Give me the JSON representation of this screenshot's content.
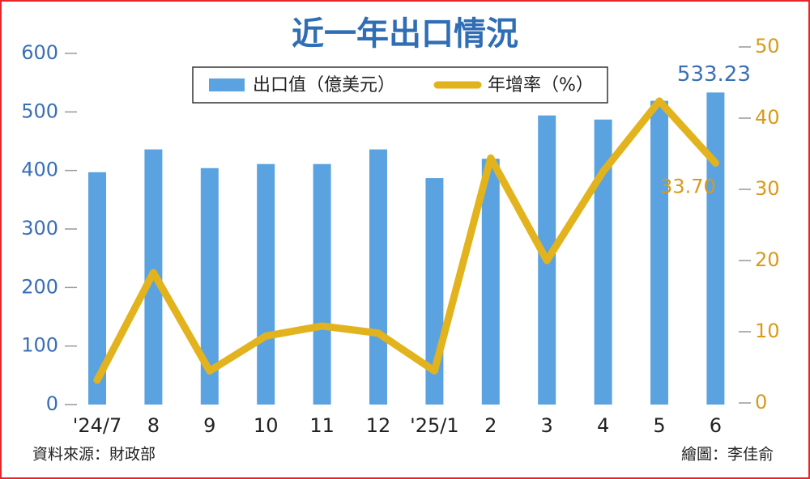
{
  "chart_data": {
    "type": "bar",
    "title": "近一年出口情況",
    "categories": [
      "'24/7",
      "8",
      "9",
      "10",
      "11",
      "12",
      "'25/1",
      "2",
      "3",
      "4",
      "5",
      "6"
    ],
    "series": [
      {
        "name": "出口值（億美元）",
        "type": "bar",
        "color": "#5ba3e0",
        "axis": "y",
        "values": [
          397,
          436,
          404,
          411,
          411,
          436,
          387,
          420,
          494,
          487,
          519,
          533.23
        ]
      },
      {
        "name": "年增率（%）",
        "type": "line",
        "color": "#e2b31d",
        "axis": "y2",
        "values": [
          3.2,
          18.3,
          4.5,
          9.4,
          10.8,
          9.8,
          4.5,
          34.4,
          20.0,
          32.5,
          42.4,
          33.7
        ],
        "value_labels": [
          null,
          null,
          null,
          null,
          null,
          null,
          null,
          null,
          null,
          null,
          null,
          "33.70"
        ]
      }
    ],
    "ylim": [
      0,
      600
    ],
    "yticks": [
      0,
      100,
      200,
      300,
      400,
      500,
      600
    ],
    "y2lim": [
      0,
      50
    ],
    "y2ticks": [
      0,
      10,
      20,
      30,
      40,
      50
    ],
    "source": "資料來源：財政部",
    "credit": "繪圖：李佳俞"
  }
}
